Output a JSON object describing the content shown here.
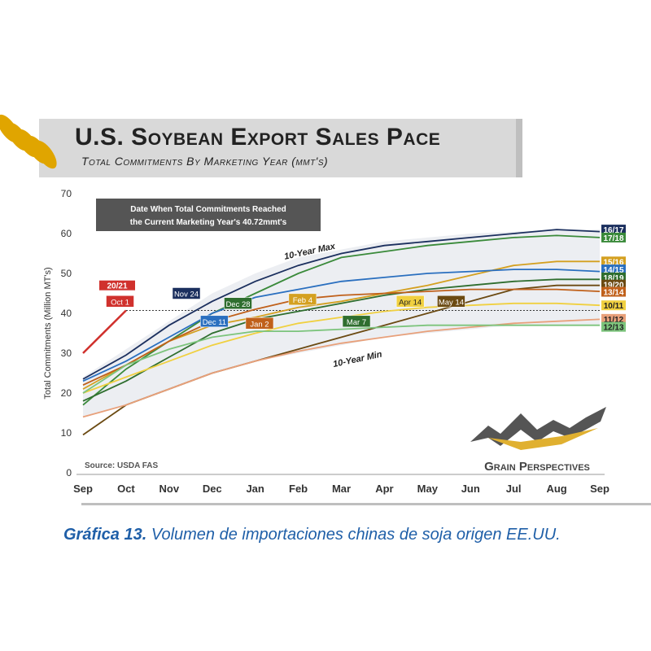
{
  "chart_data": {
    "type": "line",
    "title": "U.S. Soybean Export Sales Pace",
    "subtitle": "Total Commitments By Marketing Year (mmt's)",
    "ylabel": "Total Commitments (Million MT's)",
    "xlabel": "",
    "ylim": [
      0,
      70
    ],
    "yticks": [
      0,
      10,
      20,
      30,
      40,
      50,
      60,
      70
    ],
    "x_categories": [
      "Sep",
      "Oct",
      "Nov",
      "Dec",
      "Jan",
      "Feb",
      "Mar",
      "Apr",
      "May",
      "Jun",
      "Jul",
      "Aug",
      "Sep"
    ],
    "grid": false,
    "reference_line": 40.72,
    "infobox": {
      "line1": "Date When Total Commitments Reached",
      "line2": "the Current Marketing Year's 40.72mmt's"
    },
    "source": "Source: USDA FAS",
    "brand": "Grain Perspectives",
    "band_labels": {
      "max": "10-Year Max",
      "min": "10-Year Min"
    },
    "range_band": {
      "max": [
        24,
        31,
        38,
        45,
        50,
        54,
        56,
        58,
        59,
        60,
        60.5,
        61,
        61
      ],
      "min": [
        14,
        17,
        21,
        25,
        28,
        30,
        32,
        34,
        35,
        36,
        37,
        37,
        37
      ]
    },
    "series": [
      {
        "name": "20/21",
        "color": "#d0312d",
        "values": [
          30,
          40.72
        ],
        "marker": "Oct 1",
        "marker_x": 1.0
      },
      {
        "name": "16/17",
        "color": "#1b2f5e",
        "values": [
          23.5,
          29.5,
          37,
          43,
          48,
          52,
          55,
          57,
          58,
          59,
          60,
          61,
          60.5
        ],
        "marker": "Nov 24",
        "marker_x": 2.8
      },
      {
        "name": "17/18",
        "color": "#3a8a3a",
        "values": [
          17,
          26,
          33,
          40,
          45,
          50,
          54,
          55.5,
          57,
          58,
          59,
          59.5,
          59
        ]
      },
      {
        "name": "15/16",
        "color": "#d4a020",
        "values": [
          21,
          27,
          33,
          37,
          39,
          41.5,
          43,
          45,
          47,
          49.5,
          52,
          53,
          53
        ]
      },
      {
        "name": "14/15",
        "color": "#2a6fbf",
        "values": [
          23,
          28,
          34,
          40,
          44,
          46,
          48,
          49,
          50,
          50.5,
          51,
          51,
          50.5
        ],
        "marker": "Dec 11",
        "marker_x": 3.4
      },
      {
        "name": "18/19",
        "color": "#2f6e2f",
        "values": [
          18,
          23,
          29,
          35,
          38.5,
          40.5,
          42.5,
          44.5,
          46,
          47,
          48,
          48.5,
          48.5
        ],
        "marker": "Dec 28",
        "marker_x": 3.9
      },
      {
        "name": "19/20",
        "color": "#6b4a12",
        "values": [
          9.5,
          17,
          21,
          25,
          28,
          31,
          34,
          37,
          40,
          43,
          46,
          47,
          47
        ],
        "marker": "May 14",
        "marker_x": 8.5
      },
      {
        "name": "13/14",
        "color": "#c0601a",
        "values": [
          22,
          27,
          33,
          38,
          41,
          43.5,
          44.5,
          45,
          45.5,
          46,
          46,
          46,
          45.5
        ],
        "marker": "Jan 2",
        "marker_x": 4.0
      },
      {
        "name": "10/11",
        "color": "#f0d040",
        "values": [
          20,
          24,
          28,
          32,
          35,
          37.5,
          39,
          40.5,
          41.5,
          42,
          42.5,
          42.5,
          42
        ]
      },
      {
        "name": "11/12",
        "color": "#e8a07a",
        "values": [
          14,
          17,
          21,
          25,
          28,
          30.5,
          32.5,
          34,
          35.5,
          36.5,
          37.5,
          38,
          38.5
        ]
      },
      {
        "name": "12/13",
        "color": "#7cc47c",
        "values": [
          20,
          27,
          31,
          34,
          35.5,
          35.5,
          36,
          36.5,
          37,
          37,
          37,
          37,
          37
        ]
      }
    ],
    "extra_markers": [
      {
        "label": "Feb 4",
        "color": "#d4a020",
        "x": 5.1
      },
      {
        "label": "Mar 7",
        "color": "#2f6e2f",
        "x": 6.15
      },
      {
        "label": "Apr 14",
        "color": "#f0d040",
        "x": 7.6
      }
    ]
  },
  "caption": {
    "lead": "Gráfica 13.",
    "text": " Volumen de importaciones chinas de soja origen EE.UU."
  }
}
